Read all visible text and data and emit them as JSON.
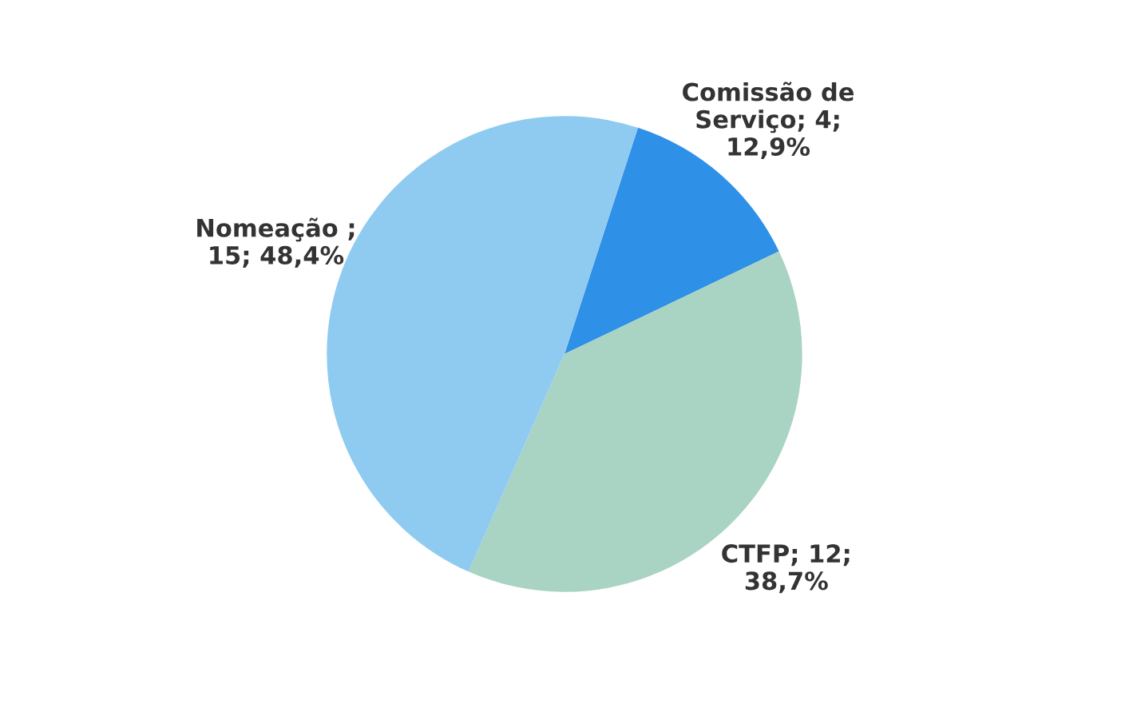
{
  "chart_data": {
    "type": "pie",
    "categories": [
      "Comissão de\nServiço; 4;\n12,9%",
      "CTFP; 12;\n38,7%",
      "Nomeação ;\n15; 48,4%"
    ],
    "values": [
      4,
      12,
      15
    ],
    "colors": [
      "#2e90e6",
      "#a9d3c3",
      "#8fcbf0"
    ]
  }
}
